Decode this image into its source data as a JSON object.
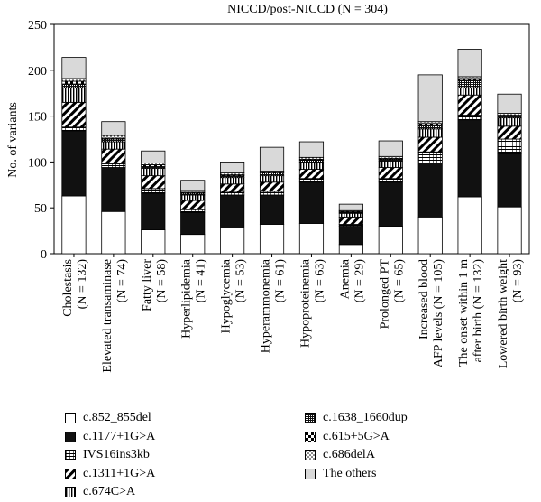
{
  "chart_data": {
    "type": "bar",
    "stacked": true,
    "title": "NICCD/post-NICCD (N = 304)",
    "ylabel": "No. of variants",
    "xlabel": "",
    "ylim": [
      0,
      250
    ],
    "yticks": [
      "0",
      "50",
      "100",
      "150",
      "200",
      "250"
    ],
    "categories": [
      [
        "Cholestasis",
        "(N = 132)"
      ],
      [
        "Elevated transaminase",
        "(N = 74)"
      ],
      [
        "Fatty liver",
        "(N = 58)"
      ],
      [
        "Hyperlipidemia",
        "(N = 41)"
      ],
      [
        "Hypoglycemia",
        "(N = 53)"
      ],
      [
        "Hyperammonemia",
        "(N = 61)"
      ],
      [
        "Hypoproteinemia",
        "(N = 63)"
      ],
      [
        "Anemia",
        "(N = 29)"
      ],
      [
        "Prolonged PT",
        "(N = 65)"
      ],
      [
        "Increased blood",
        "AFP levels (N = 105)"
      ],
      [
        "The onset within 1 m",
        "after birth (N = 132)"
      ],
      [
        "Lowered birth weight",
        "(N = 93)"
      ]
    ],
    "series": [
      {
        "name": "c.852_855del",
        "pattern": "white",
        "values": [
          63,
          46,
          26,
          21,
          28,
          32,
          33,
          10,
          30,
          40,
          62,
          51
        ]
      },
      {
        "name": "c.1177+1G>A",
        "pattern": "black",
        "values": [
          71,
          48,
          40,
          24,
          36,
          32,
          45,
          20,
          48,
          59,
          84,
          58
        ]
      },
      {
        "name": "IVS16ins3kb",
        "pattern": "grid",
        "values": [
          4,
          4,
          5,
          3,
          3,
          4,
          4,
          2,
          4,
          12,
          5,
          16
        ]
      },
      {
        "name": "c.1311+1G>A",
        "pattern": "diagonal",
        "values": [
          27,
          16,
          14,
          10,
          9,
          10,
          10,
          8,
          12,
          16,
          22,
          14
        ]
      },
      {
        "name": "c.674C>A",
        "pattern": "vertical",
        "values": [
          16,
          8,
          8,
          6,
          7,
          7,
          8,
          4,
          7,
          9,
          8,
          9
        ]
      },
      {
        "name": "c.1638_1660dup",
        "pattern": "densedots",
        "values": [
          4,
          3,
          2,
          2,
          2,
          3,
          2,
          1,
          2,
          4,
          8,
          2
        ]
      },
      {
        "name": "c.615+5G>A",
        "pattern": "checker",
        "values": [
          3,
          1,
          2,
          1,
          1,
          1,
          1,
          1,
          1,
          2,
          2,
          1
        ]
      },
      {
        "name": "c.686delA",
        "pattern": "dots",
        "values": [
          3,
          3,
          2,
          2,
          2,
          1,
          2,
          1,
          2,
          2,
          2,
          2
        ]
      },
      {
        "name": "The others",
        "pattern": "gray",
        "values": [
          23,
          15,
          13,
          11,
          12,
          26,
          17,
          7,
          17,
          51,
          30,
          21
        ]
      }
    ],
    "legend": {
      "placement": "bottom",
      "columns": 2
    }
  }
}
